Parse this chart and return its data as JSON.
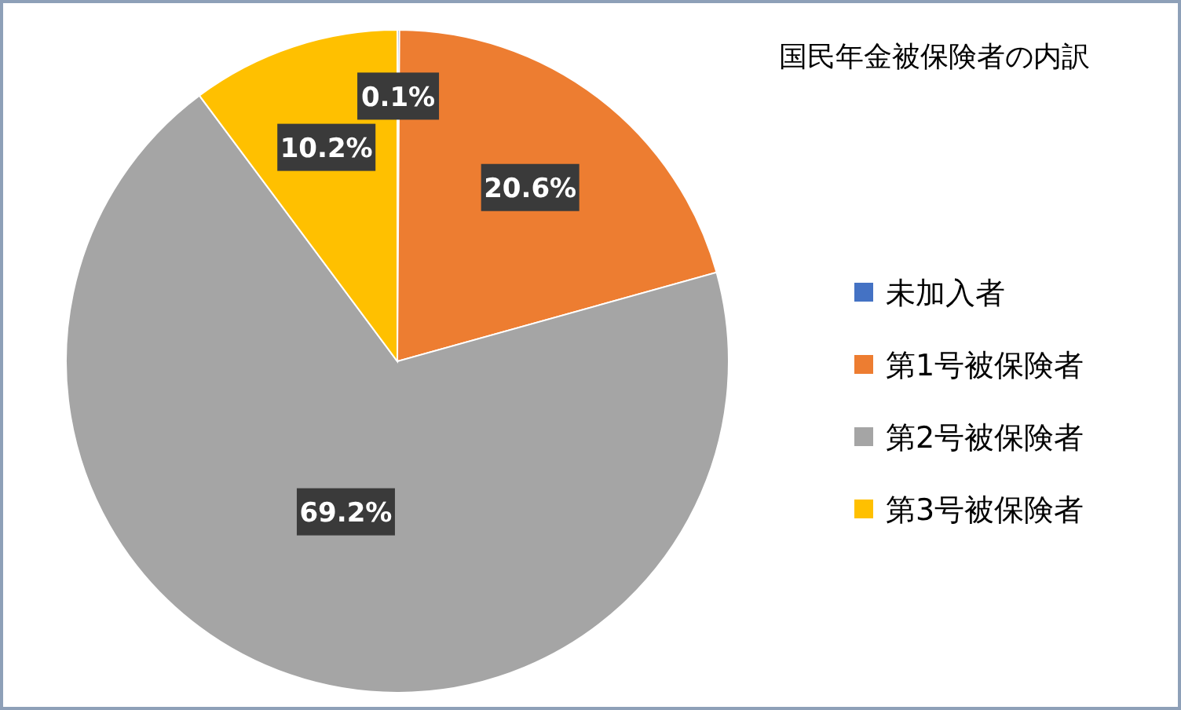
{
  "chart_data": {
    "type": "pie",
    "title": "国民年金被保険者の内訳",
    "categories": [
      "未加入者",
      "第1号被保険者",
      "第2号被保険者",
      "第3号被保険者"
    ],
    "values": [
      0.1,
      20.6,
      69.2,
      10.2
    ],
    "colors": [
      "#4472c4",
      "#ed7d31",
      "#a5a5a5",
      "#ffc000"
    ],
    "value_labels": [
      "0.1%",
      "20.6%",
      "69.2%",
      "10.2%"
    ],
    "legend": "right"
  }
}
